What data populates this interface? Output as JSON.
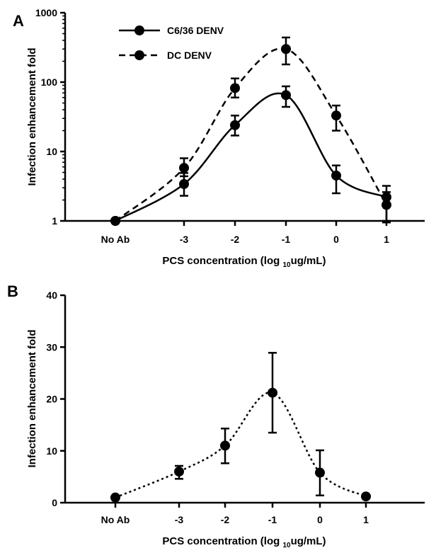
{
  "chart_data": [
    {
      "panel_label": "A",
      "type": "line",
      "y_scale": "log",
      "ylim": [
        1,
        1000
      ],
      "categories": [
        "No Ab",
        "-3",
        "-2",
        "-1",
        "0",
        "1"
      ],
      "yticks": [
        "1",
        "10",
        "100",
        "1000"
      ],
      "xlabel": {
        "main": "PCS concentration (log ",
        "sub": "10",
        "rest": "ug/mL)"
      },
      "ylabel": "Infection enhancement fold",
      "legend_placement": "top-left",
      "series": [
        {
          "name": "C6/36 DENV",
          "line_style": "solid",
          "values": [
            1.0,
            3.4,
            24,
            65,
            4.5,
            2.2
          ],
          "err_low": [
            1.0,
            2.3,
            17,
            44,
            2.5,
            1.0
          ],
          "err_high": [
            1.0,
            4.9,
            33,
            87,
            6.3,
            3.2
          ]
        },
        {
          "name": "DC DENV",
          "line_style": "dashed",
          "values": [
            1.0,
            5.8,
            82,
            300,
            33,
            1.7
          ],
          "err_low": [
            1.0,
            4.4,
            60,
            180,
            20,
            0.95
          ],
          "err_high": [
            1.0,
            8.0,
            113,
            440,
            46,
            2.6
          ]
        }
      ]
    },
    {
      "panel_label": "B",
      "type": "line",
      "y_scale": "linear",
      "ylim": [
        0,
        40
      ],
      "categories": [
        "No Ab",
        "-3",
        "-2",
        "-1",
        "0",
        "1"
      ],
      "yticks": [
        "0",
        "10",
        "20",
        "30",
        "40"
      ],
      "xlabel": {
        "main": "PCS concentration (log ",
        "sub": "10",
        "rest": "ug/mL)"
      },
      "ylabel": "Infection enhancement fold",
      "series": [
        {
          "line_style": "dotted",
          "values": [
            1.0,
            6.0,
            11.0,
            21.2,
            5.8,
            1.2
          ],
          "err_low": [
            1.0,
            4.6,
            7.6,
            13.5,
            1.4,
            1.2
          ],
          "err_high": [
            1.0,
            7.1,
            14.3,
            28.9,
            10.1,
            1.2
          ]
        }
      ]
    }
  ]
}
